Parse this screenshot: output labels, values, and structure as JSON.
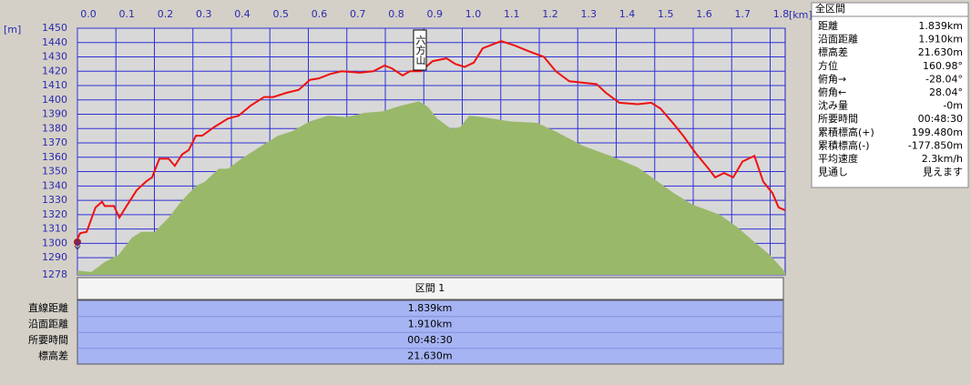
{
  "chart_data": {
    "type": "profile",
    "x_unit": "[km]",
    "y_unit": "[m]",
    "annotation": "六方山",
    "xlim": [
      0,
      1.839
    ],
    "xticks": [
      {
        "value": 0,
        "label": "0.0"
      },
      0.1,
      0.2,
      0.3,
      0.4,
      0.5,
      0.6,
      0.7,
      0.8,
      0.9,
      {
        "value": 1,
        "label": "1.0"
      },
      1.1,
      1.2,
      1.3,
      1.4,
      1.5,
      1.6,
      1.7,
      1.8
    ],
    "ylim": [
      1278,
      1450
    ],
    "yticks": [
      1278,
      1290,
      1300,
      1310,
      1320,
      1330,
      1340,
      1350,
      1360,
      1370,
      1380,
      1390,
      1400,
      1410,
      1420,
      1430,
      1440,
      1450
    ],
    "grid": true,
    "series": [
      {
        "color": "#ee1111",
        "style": "line",
        "x": [
          0,
          0.007,
          0.024,
          0.047,
          0.064,
          0.071,
          0.095,
          0.109,
          0.13,
          0.154,
          0.178,
          0.194,
          0.213,
          0.237,
          0.253,
          0.272,
          0.289,
          0.308,
          0.324,
          0.355,
          0.391,
          0.419,
          0.45,
          0.485,
          0.509,
          0.544,
          0.575,
          0.604,
          0.627,
          0.656,
          0.686,
          0.734,
          0.769,
          0.798,
          0.817,
          0.845,
          0.864,
          0.892,
          0.923,
          0.959,
          0.982,
          1.006,
          1.03,
          1.053,
          1.101,
          1.136,
          1.172,
          1.212,
          1.243,
          1.278,
          1.314,
          1.349,
          1.373,
          1.408,
          1.456,
          1.491,
          1.515,
          1.55,
          1.574,
          1.609,
          1.64,
          1.657,
          1.68,
          1.704,
          1.728,
          1.759,
          1.782,
          1.806,
          1.822,
          1.839
        ],
        "values": [
          1303,
          1307,
          1308,
          1325,
          1329,
          1326,
          1326,
          1318,
          1327,
          1337,
          1343,
          1346,
          1359,
          1359,
          1354,
          1362,
          1365,
          1375,
          1375,
          1381,
          1387,
          1389,
          1396,
          1402,
          1402,
          1405,
          1407,
          1414,
          1415,
          1418,
          1420,
          1419,
          1420,
          1424,
          1422,
          1417,
          1420,
          1420,
          1427,
          1429,
          1425,
          1423,
          1426,
          1436,
          1441,
          1438,
          1434,
          1430,
          1420,
          1413,
          1412,
          1411,
          1405,
          1398,
          1397,
          1398,
          1394,
          1383,
          1375,
          1362,
          1352,
          1346,
          1349,
          1346,
          1357,
          1361,
          1343,
          1335,
          1325,
          1323
        ]
      },
      {
        "color": "#9ab86a",
        "style": "area",
        "x": [
          0,
          0.036,
          0.071,
          0.107,
          0.142,
          0.166,
          0.201,
          0.237,
          0.272,
          0.308,
          0.331,
          0.367,
          0.391,
          0.426,
          0.473,
          0.521,
          0.556,
          0.604,
          0.651,
          0.698,
          0.746,
          0.793,
          0.84,
          0.888,
          0.911,
          0.935,
          0.97,
          0.994,
          1.018,
          1.053,
          1.124,
          1.195,
          1.243,
          1.314,
          1.385,
          1.456,
          1.503,
          1.55,
          1.598,
          1.669,
          1.716,
          1.763,
          1.799,
          1.839
        ],
        "values": [
          1281,
          1280,
          1287,
          1292,
          1304,
          1308,
          1308,
          1318,
          1330,
          1340,
          1343,
          1352,
          1352,
          1359,
          1367,
          1375,
          1378,
          1385,
          1389,
          1388,
          1391,
          1392,
          1396,
          1399,
          1395,
          1387,
          1380,
          1381,
          1389,
          1388,
          1385,
          1384,
          1378,
          1368,
          1361,
          1353,
          1344,
          1335,
          1327,
          1320,
          1311,
          1300,
          1292,
          1280
        ]
      }
    ]
  },
  "side_panel": {
    "title": "全区間",
    "rows": [
      [
        "距離",
        "1.839km"
      ],
      [
        "沿面距離",
        "1.910km"
      ],
      [
        "標高差",
        "21.630m"
      ],
      [
        "方位",
        "160.98°"
      ],
      [
        "俯角→",
        "-28.04°"
      ],
      [
        "俯角←",
        "28.04°"
      ],
      [
        "沈み量",
        "-0m"
      ],
      [
        "所要時間",
        "00:48:30"
      ],
      [
        "累積標高(+)",
        "199.480m"
      ],
      [
        "累積標高(-)",
        "-177.850m"
      ],
      [
        "平均速度",
        "2.3km/h"
      ],
      [
        "見通し",
        "見えます"
      ]
    ]
  },
  "section_table": {
    "title": "区間 1",
    "rows": [
      [
        "直線距離",
        "1.839km"
      ],
      [
        "沿面距離",
        "1.910km"
      ],
      [
        "所要時間",
        "00:48:30"
      ],
      [
        "標高差",
        "21.630m"
      ]
    ]
  }
}
